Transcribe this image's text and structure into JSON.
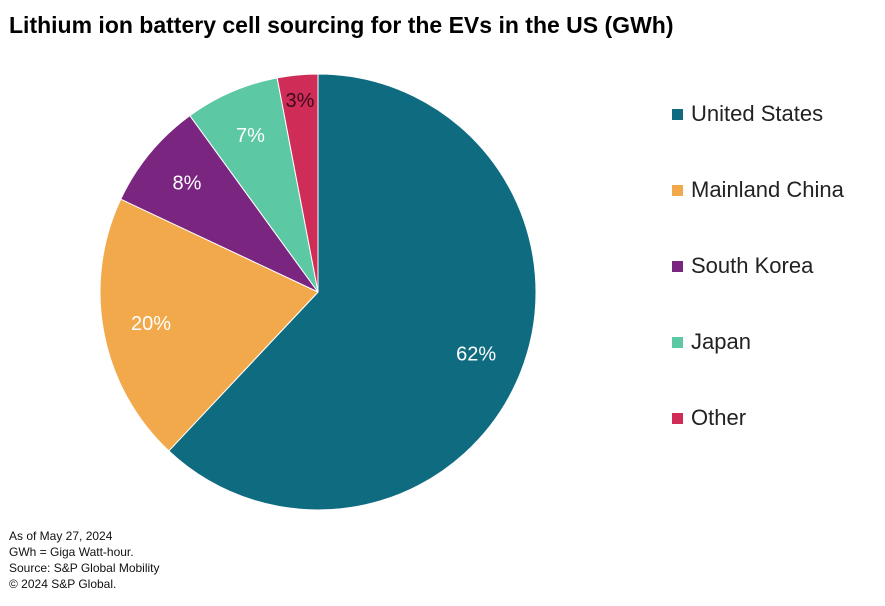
{
  "chart_data": {
    "type": "pie",
    "title": "Lithium ion battery cell sourcing for the EVs in the US (GWh)",
    "slices": [
      {
        "name": "United States",
        "value": 62,
        "label": "62%",
        "color": "#0e6b80",
        "label_color": "#ffffff"
      },
      {
        "name": "Mainland China",
        "value": 20,
        "label": "20%",
        "color": "#f2a94c",
        "label_color": "#ffffff"
      },
      {
        "name": "South Korea",
        "value": 8,
        "label": "8%",
        "color": "#7a2580",
        "label_color": "#ffffff"
      },
      {
        "name": "Japan",
        "value": 7,
        "label": "7%",
        "color": "#5cc8a4",
        "label_color": "#ffffff"
      },
      {
        "name": "Other",
        "value": 3,
        "label": "3%",
        "color": "#cf2c57",
        "label_color": "#3a0a1a"
      }
    ],
    "legend_position": "right",
    "start": "top",
    "direction": "clockwise"
  },
  "notes": {
    "date": "As of May 27, 2024",
    "unit": "GWh = Giga Watt-hour.",
    "source": "Source: S&P Global Mobility",
    "copyright": "© 2024 S&P Global."
  }
}
